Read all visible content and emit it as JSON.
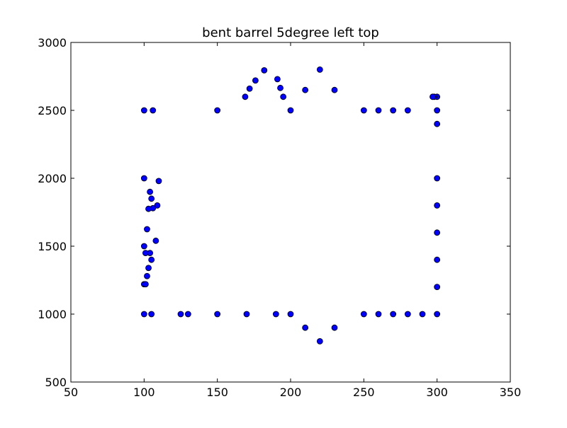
{
  "chart_data": {
    "type": "scatter",
    "title": "bent barrel 5degree left top",
    "xlabel": "",
    "ylabel": "",
    "xlim": [
      50,
      350
    ],
    "ylim": [
      500,
      3000
    ],
    "xticks": [
      50,
      100,
      150,
      200,
      250,
      300,
      350
    ],
    "yticks": [
      500,
      1000,
      1500,
      2000,
      2500,
      3000
    ],
    "grid": false,
    "marker_color": "#0000ff",
    "marker_edge_color": "#000000",
    "points": [
      {
        "x": 100,
        "y": 2500
      },
      {
        "x": 106,
        "y": 2500
      },
      {
        "x": 100,
        "y": 2000
      },
      {
        "x": 110,
        "y": 1980
      },
      {
        "x": 104,
        "y": 1900
      },
      {
        "x": 105,
        "y": 1850
      },
      {
        "x": 109,
        "y": 1800
      },
      {
        "x": 106,
        "y": 1780
      },
      {
        "x": 103,
        "y": 1775
      },
      {
        "x": 102,
        "y": 1625
      },
      {
        "x": 108,
        "y": 1540
      },
      {
        "x": 100,
        "y": 1500
      },
      {
        "x": 101,
        "y": 1450
      },
      {
        "x": 104,
        "y": 1450
      },
      {
        "x": 105,
        "y": 1400
      },
      {
        "x": 103,
        "y": 1340
      },
      {
        "x": 102,
        "y": 1280
      },
      {
        "x": 100,
        "y": 1220
      },
      {
        "x": 101,
        "y": 1220
      },
      {
        "x": 100,
        "y": 1000
      },
      {
        "x": 105,
        "y": 1000
      },
      {
        "x": 125,
        "y": 1000
      },
      {
        "x": 130,
        "y": 1000
      },
      {
        "x": 150,
        "y": 1000
      },
      {
        "x": 170,
        "y": 1000
      },
      {
        "x": 190,
        "y": 1000
      },
      {
        "x": 200,
        "y": 1000
      },
      {
        "x": 210,
        "y": 900
      },
      {
        "x": 220,
        "y": 800
      },
      {
        "x": 230,
        "y": 900
      },
      {
        "x": 250,
        "y": 1000
      },
      {
        "x": 260,
        "y": 1000
      },
      {
        "x": 270,
        "y": 1000
      },
      {
        "x": 280,
        "y": 1000
      },
      {
        "x": 290,
        "y": 1000
      },
      {
        "x": 300,
        "y": 1000
      },
      {
        "x": 300,
        "y": 1200
      },
      {
        "x": 300,
        "y": 1400
      },
      {
        "x": 300,
        "y": 1600
      },
      {
        "x": 300,
        "y": 1800
      },
      {
        "x": 300,
        "y": 2000
      },
      {
        "x": 300,
        "y": 2400
      },
      {
        "x": 300,
        "y": 2500
      },
      {
        "x": 300,
        "y": 2600
      },
      {
        "x": 298,
        "y": 2600
      },
      {
        "x": 297,
        "y": 2600
      },
      {
        "x": 280,
        "y": 2500
      },
      {
        "x": 270,
        "y": 2500
      },
      {
        "x": 260,
        "y": 2500
      },
      {
        "x": 250,
        "y": 2500
      },
      {
        "x": 230,
        "y": 2650
      },
      {
        "x": 220,
        "y": 2800
      },
      {
        "x": 210,
        "y": 2650
      },
      {
        "x": 200,
        "y": 2500
      },
      {
        "x": 195,
        "y": 2600
      },
      {
        "x": 193,
        "y": 2665
      },
      {
        "x": 191,
        "y": 2730
      },
      {
        "x": 182,
        "y": 2795
      },
      {
        "x": 176,
        "y": 2720
      },
      {
        "x": 172,
        "y": 2660
      },
      {
        "x": 169,
        "y": 2600
      },
      {
        "x": 150,
        "y": 2500
      }
    ]
  }
}
